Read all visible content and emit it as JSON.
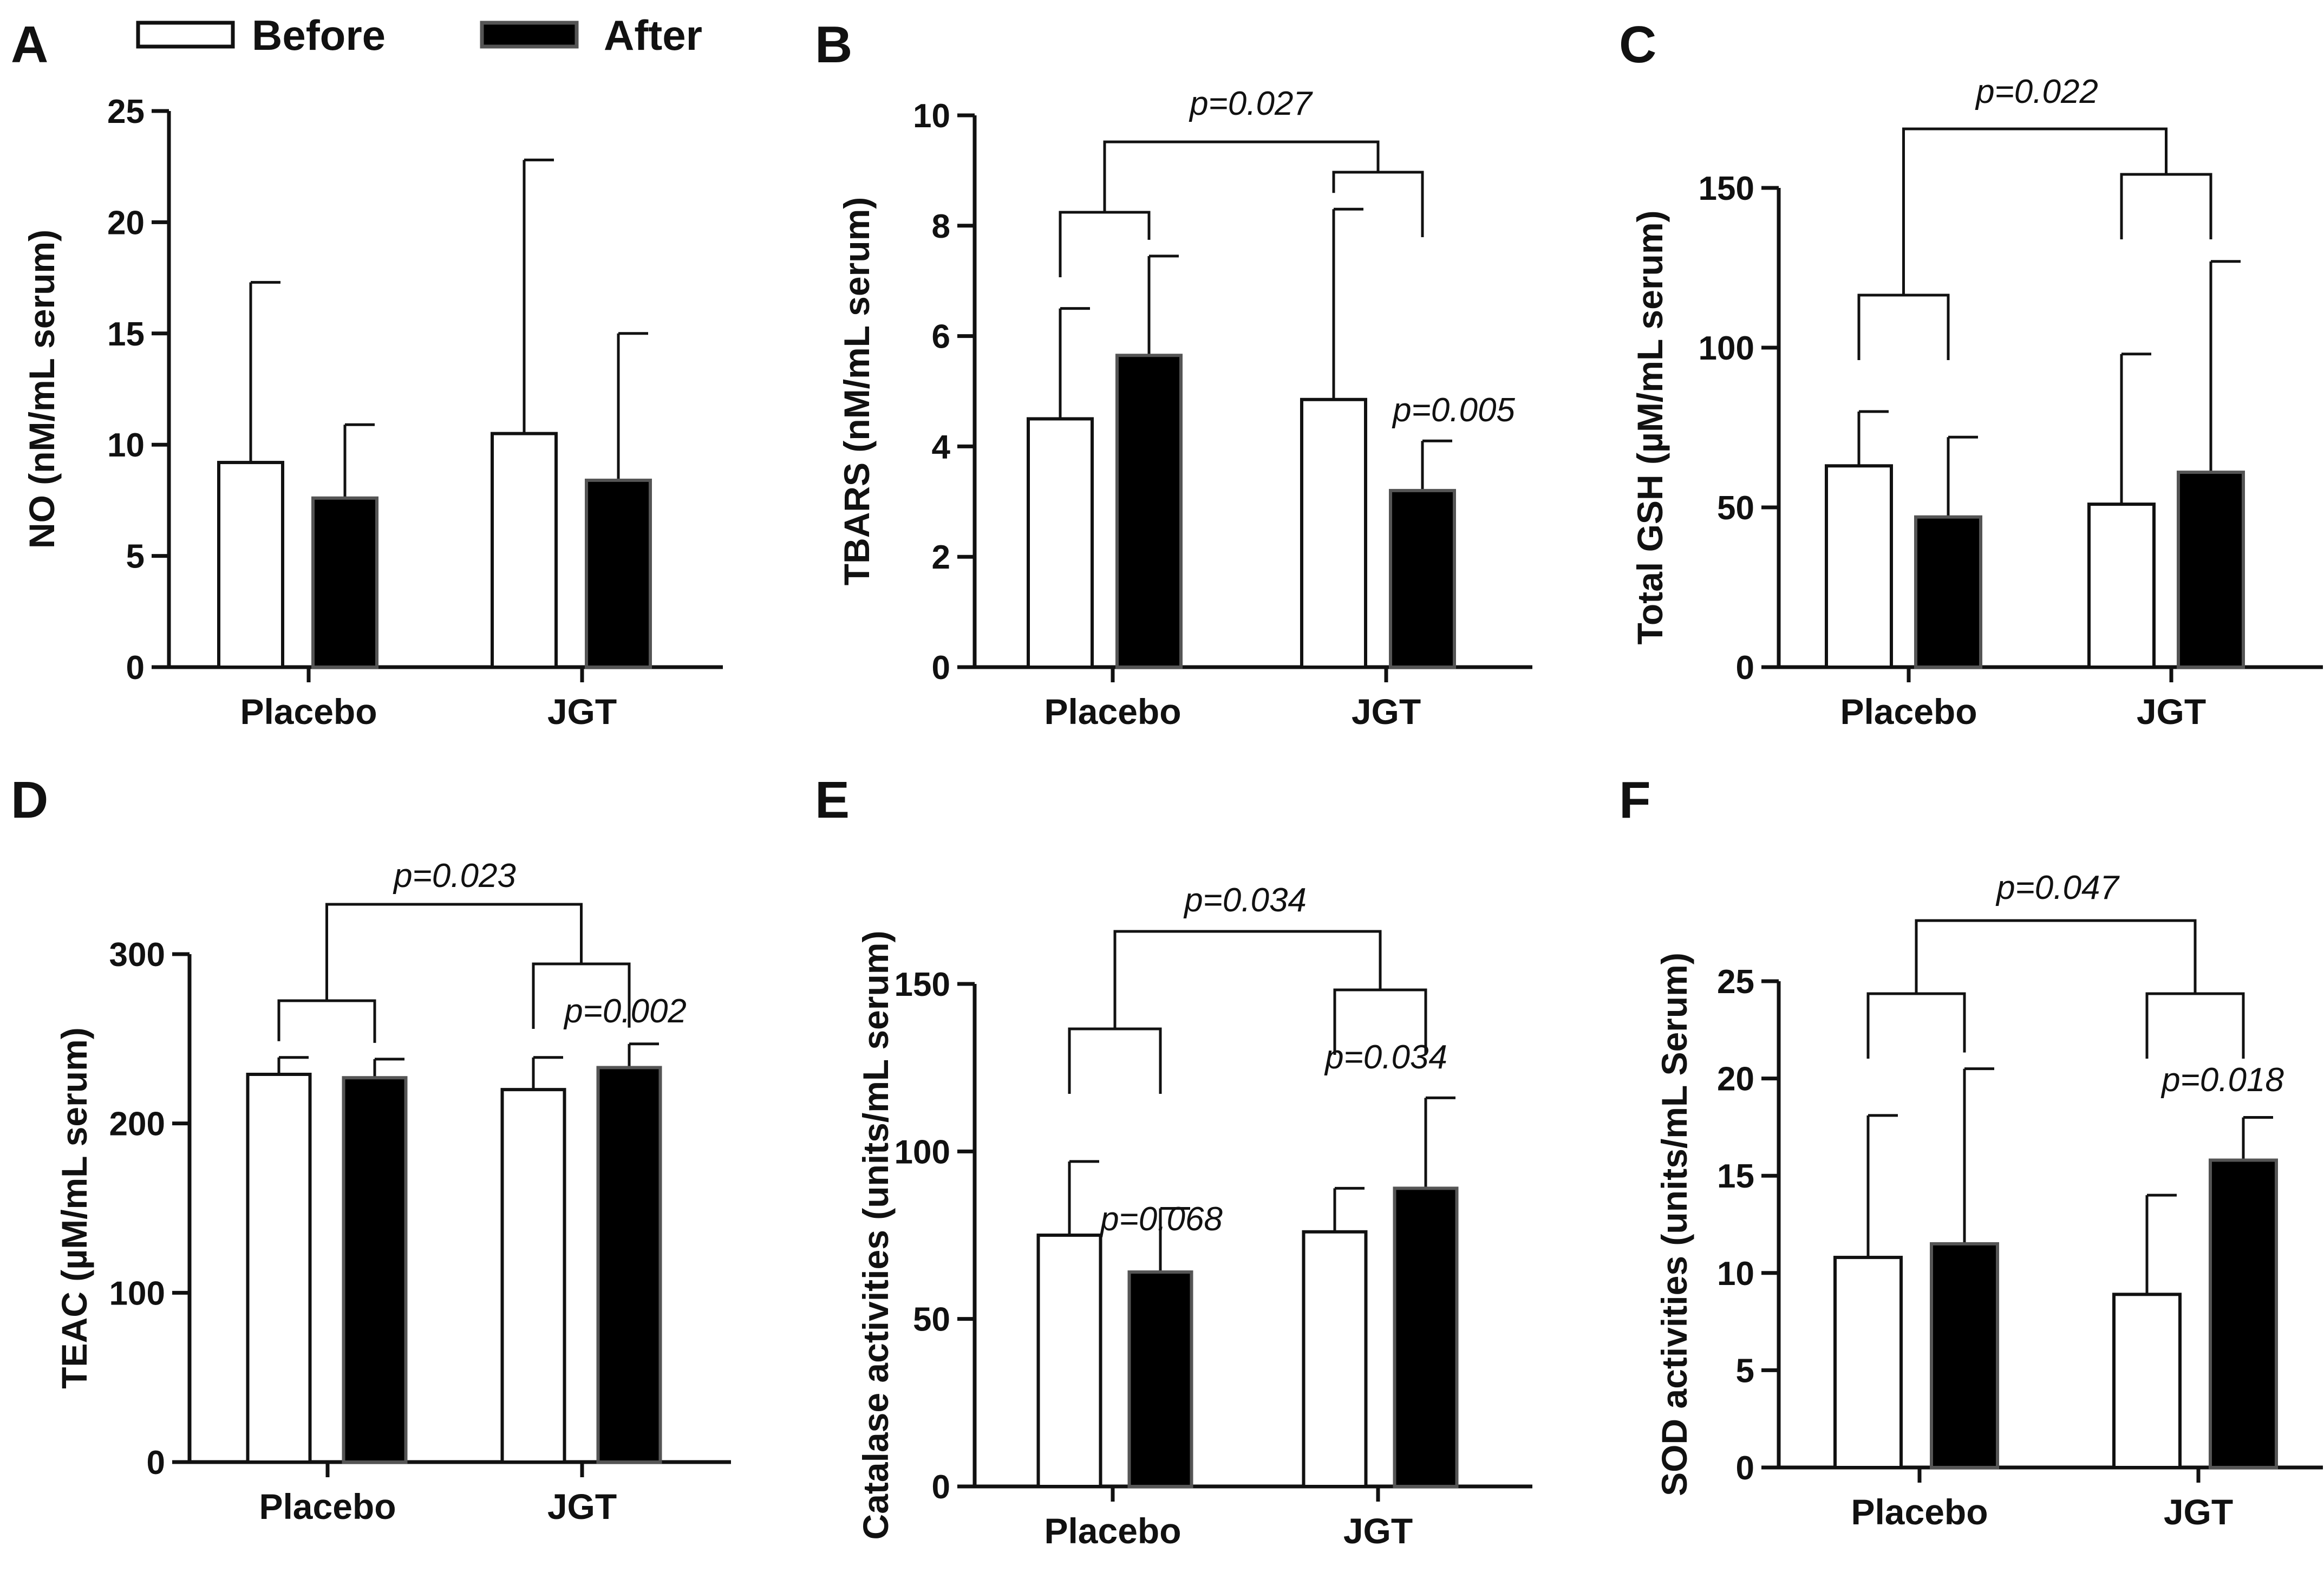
{
  "legend": {
    "before_label": "Before",
    "after_label": "After",
    "before_color": "#ffffff",
    "after_color": "#000000"
  },
  "chart_data": [
    {
      "panel": "A",
      "type": "bar",
      "ylabel": "NO (nM/mL serum)",
      "ylim": [
        0,
        25
      ],
      "yticks": [
        0,
        5,
        10,
        15,
        20,
        25
      ],
      "categories": [
        "Placebo",
        "JGT"
      ],
      "series": [
        {
          "name": "Before",
          "values": [
            9.2,
            10.5
          ],
          "errors": [
            8.1,
            12.3
          ]
        },
        {
          "name": "After",
          "values": [
            7.6,
            8.4
          ],
          "errors": [
            3.3,
            6.6
          ]
        }
      ],
      "annotations": []
    },
    {
      "panel": "B",
      "type": "bar",
      "ylabel": "TBARS (nM/mL serum)",
      "ylim": [
        0,
        10
      ],
      "yticks": [
        0,
        2,
        4,
        6,
        8,
        10
      ],
      "categories": [
        "Placebo",
        "JGT"
      ],
      "series": [
        {
          "name": "Before",
          "values": [
            4.5,
            4.85
          ],
          "errors": [
            2.0,
            3.45
          ]
        },
        {
          "name": "After",
          "values": [
            5.65,
            3.2
          ],
          "errors": [
            1.8,
            0.9
          ]
        }
      ],
      "annotations": [
        {
          "text": "p=0.027",
          "kind": "interaction"
        },
        {
          "text": "p=0.005",
          "kind": "within",
          "group": 1
        }
      ]
    },
    {
      "panel": "C",
      "type": "bar",
      "ylabel": "Total GSH (µM/mL serum)",
      "ylim": [
        0,
        150
      ],
      "yticks": [
        0,
        50,
        100,
        150
      ],
      "categories": [
        "Placebo",
        "JGT"
      ],
      "series": [
        {
          "name": "Before",
          "values": [
            63,
            51
          ],
          "errors": [
            17,
            47
          ]
        },
        {
          "name": "After",
          "values": [
            47,
            61
          ],
          "errors": [
            25,
            66
          ]
        }
      ],
      "annotations": [
        {
          "text": "p=0.022",
          "kind": "interaction"
        }
      ]
    },
    {
      "panel": "D",
      "type": "bar",
      "ylabel": "TEAC (µM/mL serum)",
      "ylim": [
        0,
        300
      ],
      "yticks": [
        0,
        100,
        200,
        300
      ],
      "categories": [
        "Placebo",
        "JGT"
      ],
      "series": [
        {
          "name": "Before",
          "values": [
            229,
            220
          ],
          "errors": [
            10,
            19
          ]
        },
        {
          "name": "After",
          "values": [
            227,
            233
          ],
          "errors": [
            11,
            14
          ]
        }
      ],
      "annotations": [
        {
          "text": "p=0.023",
          "kind": "interaction"
        },
        {
          "text": "p=0.002",
          "kind": "within",
          "group": 1
        }
      ]
    },
    {
      "panel": "E",
      "type": "bar",
      "ylabel": "Catalase activities (units/mL serum)",
      "ylim": [
        0,
        150
      ],
      "yticks": [
        0,
        50,
        100,
        150
      ],
      "categories": [
        "Placebo",
        "JGT"
      ],
      "series": [
        {
          "name": "Before",
          "values": [
            75,
            76
          ],
          "errors": [
            22,
            13
          ]
        },
        {
          "name": "After",
          "values": [
            64,
            89
          ],
          "errors": [
            19,
            27
          ]
        }
      ],
      "annotations": [
        {
          "text": "p=0.034",
          "kind": "interaction"
        },
        {
          "text": "p=0.068",
          "kind": "within",
          "group": 0
        },
        {
          "text": "p=0.034",
          "kind": "within",
          "group": 1
        }
      ]
    },
    {
      "panel": "F",
      "type": "bar",
      "ylabel": "SOD activities (units/mL Serum)",
      "ylim": [
        0,
        25
      ],
      "yticks": [
        0,
        5,
        10,
        15,
        20,
        25
      ],
      "categories": [
        "Placebo",
        "JGT"
      ],
      "series": [
        {
          "name": "Before",
          "values": [
            10.8,
            8.9
          ],
          "errors": [
            7.3,
            5.1
          ]
        },
        {
          "name": "After",
          "values": [
            11.5,
            15.8
          ],
          "errors": [
            9.0,
            2.2
          ]
        }
      ],
      "annotations": [
        {
          "text": "p=0.047",
          "kind": "interaction"
        },
        {
          "text": "p=0.018",
          "kind": "within",
          "group": 1
        }
      ]
    }
  ]
}
